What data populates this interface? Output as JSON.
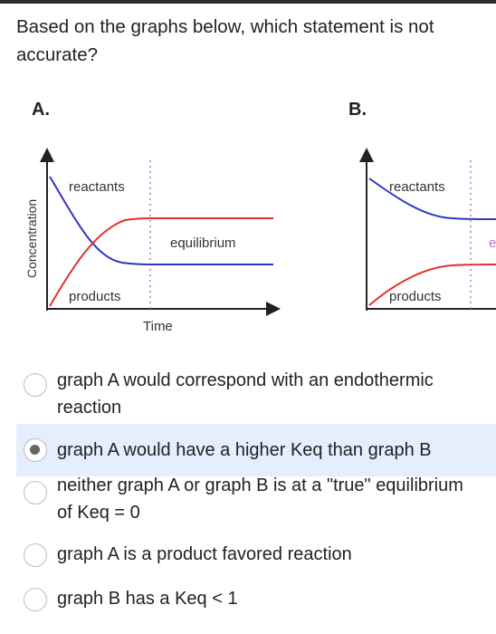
{
  "question": {
    "text": "Based on the graphs below, which statement is not accurate?"
  },
  "graph_a": {
    "label": "A.",
    "reactants_label": "reactants",
    "products_label": "products",
    "equilibrium_label": "equilibrium",
    "y_axis_label": "Concentration",
    "x_axis_label": "Time"
  },
  "graph_b": {
    "label": "B.",
    "reactants_label": "reactants",
    "products_label": "products",
    "equilibrium_label_fragment": "e"
  },
  "colors": {
    "reactants_line": "#2e35c8",
    "products_line": "#e0322f",
    "equilibrium_marker": "#c56cdc",
    "selected_background": "#e4eefc"
  },
  "options": [
    {
      "text": "graph A would correspond with an endothermic reaction",
      "selected": false
    },
    {
      "text": "graph A would have a higher Keq than graph B",
      "selected": true
    },
    {
      "text": "neither graph A or graph B is at a \"true\" equilibrium of Keq = 0",
      "selected": false
    },
    {
      "text": "graph A is a product favored reaction",
      "selected": false
    },
    {
      "text": "graph B has a Keq < 1",
      "selected": false
    }
  ]
}
